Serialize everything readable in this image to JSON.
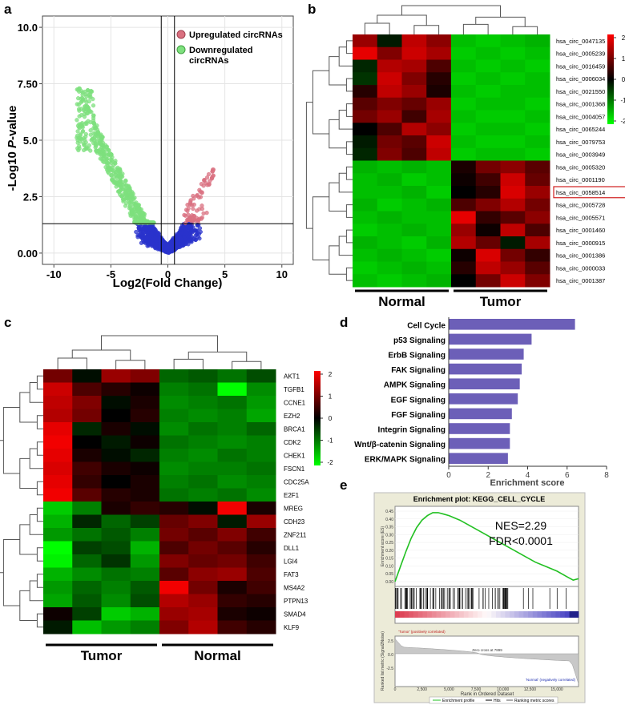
{
  "panel_letters": {
    "a": "a",
    "b": "b",
    "c": "c",
    "d": "d",
    "e": "e"
  },
  "colors": {
    "up": "#d97080",
    "down": "#7ee07e",
    "ns": "#2a33cc",
    "heat_high": "#ff0000",
    "heat_mid": "#000000",
    "heat_low": "#00ff00",
    "bar": "#6c5fb8",
    "gsea_line": "#22c022"
  },
  "chart_data": [
    {
      "type": "scatter",
      "panel": "a",
      "ylabel_prefix": "-Log10 ",
      "ylabel_italic": "P",
      "ylabel_suffix": "-value",
      "xlabel": "Log2(Fold Change)",
      "xlim": [
        -11,
        11
      ],
      "ylim": [
        -0.5,
        10.5
      ],
      "xticks": [
        -10,
        -5,
        0,
        5,
        10
      ],
      "yticks": [
        0.0,
        2.5,
        5.0,
        7.5,
        10.0
      ],
      "ytick_labels": [
        "0.00",
        "2.5",
        "5.0",
        "7.50",
        "10.0"
      ],
      "threshold_lines": {
        "x": [
          -0.58,
          0.58
        ],
        "y": 1.3
      },
      "legend": [
        {
          "key": "up",
          "label": "Upregulated circRNAs"
        },
        {
          "key": "down",
          "label": "Downregulated circRNAs"
        }
      ]
    },
    {
      "type": "heatmap",
      "panel": "b",
      "rows": [
        "hsa_circ_0047135",
        "hsa_circ_0005239",
        "hsa_circ_0016459",
        "hsa_circ_0006034",
        "hsa_circ_0021550",
        "hsa_circ_0001368",
        "hsa_circ_0004057",
        "hsa_circ_0065244",
        "hsa_circ_0079753",
        "hsa_circ_0003949",
        "hsa_circ_0005320",
        "hsa_circ_0001190",
        "hsa_circ_0058514",
        "hsa_circ_0005728",
        "hsa_circ_0005571",
        "hsa_circ_0001460",
        "hsa_circ_0000915",
        "hsa_circ_0001386",
        "hsa_circ_0000033",
        "hsa_circ_0001387"
      ],
      "highlighted_row": "hsa_circ_0058514",
      "groups": [
        "Normal",
        "Tumor"
      ],
      "colorbar_ticks": [
        "2",
        "1",
        "0",
        "-1",
        "-2"
      ],
      "values": [
        [
          1.2,
          -0.2,
          1.5,
          1.1,
          -1.5,
          -1.6,
          -1.5,
          -1.4
        ],
        [
          1.8,
          1.0,
          1.6,
          1.3,
          -1.6,
          -1.5,
          -1.6,
          -1.5
        ],
        [
          -0.3,
          1.4,
          1.3,
          0.6,
          -1.5,
          -1.6,
          -1.5,
          -1.6
        ],
        [
          -0.4,
          1.6,
          1.0,
          0.3,
          -1.6,
          -1.5,
          -1.6,
          -1.5
        ],
        [
          0.3,
          1.5,
          1.2,
          0.2,
          -1.5,
          -1.6,
          -1.5,
          -1.5
        ],
        [
          0.7,
          1.0,
          0.8,
          1.2,
          -1.6,
          -1.5,
          -1.5,
          -1.6
        ],
        [
          0.9,
          1.2,
          0.5,
          1.3,
          -1.5,
          -1.6,
          -1.6,
          -1.5
        ],
        [
          0.0,
          0.6,
          1.4,
          1.1,
          -1.6,
          -1.5,
          -1.5,
          -1.6
        ],
        [
          -0.2,
          0.9,
          0.7,
          1.6,
          -1.5,
          -1.6,
          -1.6,
          -1.5
        ],
        [
          -0.3,
          1.0,
          0.6,
          1.5,
          -1.6,
          -1.5,
          -1.5,
          -1.6
        ],
        [
          -1.4,
          -1.5,
          -1.4,
          -1.5,
          0.2,
          0.9,
          1.1,
          0.7
        ],
        [
          -1.5,
          -1.4,
          -1.6,
          -1.5,
          0.1,
          0.5,
          1.6,
          0.8
        ],
        [
          -1.5,
          -1.5,
          -1.4,
          -1.6,
          0.0,
          0.3,
          1.7,
          1.2
        ],
        [
          -1.4,
          -1.6,
          -1.5,
          -1.4,
          0.6,
          1.0,
          1.4,
          0.9
        ],
        [
          -1.5,
          -1.4,
          -1.5,
          -1.5,
          1.8,
          0.4,
          0.7,
          1.1
        ],
        [
          -1.6,
          -1.5,
          -1.4,
          -1.5,
          1.2,
          0.1,
          1.5,
          0.6
        ],
        [
          -1.4,
          -1.5,
          -1.6,
          -1.4,
          1.4,
          0.8,
          -0.2,
          1.3
        ],
        [
          -1.5,
          -1.4,
          -1.5,
          -1.6,
          0.1,
          1.7,
          0.9,
          0.4
        ],
        [
          -1.6,
          -1.5,
          -1.4,
          -1.5,
          0.3,
          1.5,
          1.2,
          0.7
        ],
        [
          -1.5,
          -1.6,
          -1.5,
          -1.4,
          0.0,
          0.9,
          1.6,
          1.0
        ]
      ]
    },
    {
      "type": "heatmap",
      "panel": "c",
      "rows": [
        "AKT1",
        "TGFB1",
        "CCNE1",
        "EZH2",
        "BRCA1",
        "CDK2",
        "CHEK1",
        "FSCN1",
        "CDC25A",
        "E2F1",
        "MREG",
        "CDH23",
        "ZNF211",
        "DLL1",
        "LGI4",
        "FAT3",
        "MS4A2",
        "PTPN13",
        "SMAD4",
        "KLF9"
      ],
      "groups": [
        "Tumor",
        "Normal"
      ],
      "colorbar_ticks": [
        "2",
        "1",
        "0",
        "-1",
        "-2"
      ],
      "values": [
        [
          0.9,
          -0.1,
          1.2,
          1.0,
          -0.8,
          -0.7,
          -0.9,
          -0.6
        ],
        [
          1.6,
          0.6,
          0.3,
          0.1,
          -1.0,
          -0.9,
          -2.0,
          -1.1
        ],
        [
          1.5,
          1.0,
          -0.1,
          0.2,
          -1.1,
          -1.0,
          -0.9,
          -1.2
        ],
        [
          1.4,
          0.9,
          0.0,
          0.3,
          -1.0,
          -1.1,
          -1.0,
          -1.3
        ],
        [
          1.8,
          -0.3,
          0.2,
          -0.1,
          -1.1,
          -0.9,
          -1.0,
          -0.8
        ],
        [
          1.9,
          0.0,
          -0.2,
          0.1,
          -0.9,
          -1.0,
          -1.1,
          -1.0
        ],
        [
          1.8,
          0.2,
          -0.1,
          -0.3,
          -1.0,
          -1.1,
          -0.9,
          -1.0
        ],
        [
          1.7,
          0.5,
          0.2,
          0.1,
          -1.1,
          -1.0,
          -1.0,
          -0.9
        ],
        [
          1.8,
          0.4,
          0.0,
          0.2,
          -1.0,
          -0.9,
          -1.1,
          -1.0
        ],
        [
          1.9,
          0.7,
          0.3,
          0.2,
          -0.9,
          -1.0,
          -0.9,
          -1.1
        ],
        [
          -1.6,
          -1.0,
          0.2,
          0.4,
          0.3,
          -0.1,
          1.9,
          0.2
        ],
        [
          -1.4,
          -0.3,
          -0.8,
          -0.5,
          0.8,
          1.0,
          -0.2,
          1.2
        ],
        [
          -1.2,
          -0.9,
          -0.7,
          -1.0,
          0.9,
          0.7,
          1.0,
          0.5
        ],
        [
          -2.0,
          -0.5,
          -0.6,
          -1.4,
          0.6,
          0.9,
          0.7,
          0.3
        ],
        [
          -1.9,
          -0.8,
          -0.4,
          -1.2,
          1.0,
          0.8,
          0.9,
          0.5
        ],
        [
          -1.4,
          -1.1,
          -0.9,
          -1.0,
          0.7,
          1.1,
          1.2,
          0.6
        ],
        [
          -1.2,
          -0.8,
          -1.0,
          -0.7,
          1.9,
          0.9,
          0.2,
          0.5
        ],
        [
          -1.3,
          -0.7,
          -1.1,
          -0.6,
          1.4,
          1.2,
          0.4,
          0.3
        ],
        [
          0.1,
          -0.5,
          -1.6,
          -1.4,
          1.2,
          1.3,
          0.2,
          0.1
        ],
        [
          -0.2,
          -1.5,
          -1.2,
          -1.0,
          1.0,
          1.4,
          0.5,
          0.3
        ]
      ]
    },
    {
      "type": "bar",
      "panel": "d",
      "orientation": "horizontal",
      "categories": [
        "Cell Cycle",
        "p53 Signaling",
        "ErbB Signaling",
        "FAK Signaling",
        "AMPK Signaling",
        "EGF Signaling",
        "FGF Signaling",
        "Integrin Signaling",
        "Wnt/β-catenin Signaling",
        "ERK/MAPK Signaling"
      ],
      "values": [
        6.4,
        4.2,
        3.8,
        3.7,
        3.6,
        3.5,
        3.2,
        3.1,
        3.1,
        3.0
      ],
      "xlabel": "Enrichment score",
      "xlim": [
        0,
        8
      ],
      "xticks": [
        0,
        2,
        4,
        6,
        8
      ]
    },
    {
      "type": "line",
      "panel": "e",
      "title": "Enrichment plot: KEGG_CELL_CYCLE",
      "nes": "NES=2.29",
      "fdr": "FDR<0.0001",
      "ylabel_top": "Enrichment score (ES)",
      "ylabel_bottom": "Ranked list metric (Signal2Noise)",
      "xlabel": "Rank in Ordered Dataset",
      "yticks": [
        "0.45",
        "0.40",
        "0.35",
        "0.30",
        "0.25",
        "0.20",
        "0.15",
        "0.10",
        "0.05",
        "0.00"
      ],
      "xticks": [
        "0",
        "2,500",
        "5,000",
        "7,500",
        "10,000",
        "12,500",
        "15,000"
      ],
      "metric_yticks": [
        "2.5",
        "0.0",
        "-2.5"
      ],
      "tumor_label": "'Tumor' (positively correlated)",
      "normal_label": "'Normal' (negatively correlated)",
      "zero_cross": "Zero cross at 7899",
      "legend": [
        "Enrichment profile",
        "Hits",
        "Ranking metric scores"
      ],
      "x": [
        0,
        500,
        1000,
        1500,
        2000,
        2500,
        3000,
        3500,
        4000,
        4500,
        5000,
        6000,
        7000,
        8000,
        9000,
        10000,
        11000,
        12000,
        13000,
        14000,
        15000,
        16000,
        16500,
        17000
      ],
      "es": [
        0.0,
        0.1,
        0.2,
        0.29,
        0.36,
        0.41,
        0.44,
        0.46,
        0.46,
        0.45,
        0.44,
        0.41,
        0.37,
        0.33,
        0.29,
        0.25,
        0.21,
        0.17,
        0.13,
        0.1,
        0.07,
        0.03,
        0.01,
        0.02
      ],
      "xmax": 17000,
      "ymin": 0.0,
      "ymax": 0.47
    }
  ]
}
